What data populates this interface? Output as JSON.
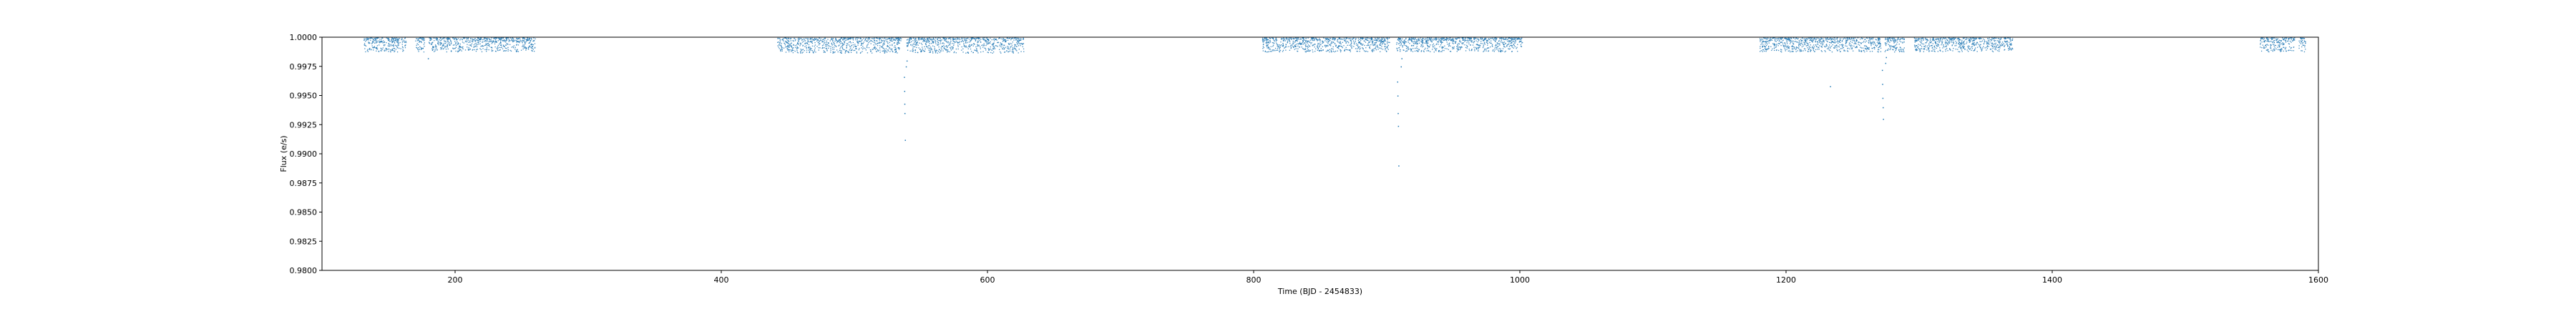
{
  "chart_data": {
    "type": "scatter",
    "title": "",
    "xlabel": "Time (BJD - 2454833)",
    "ylabel": "Flux (e/s)",
    "xlim": [
      100,
      1600
    ],
    "ylim": [
      0.98,
      1.0
    ],
    "xticks": [
      {
        "value": 200,
        "label": "200"
      },
      {
        "value": 400,
        "label": "400"
      },
      {
        "value": 600,
        "label": "600"
      },
      {
        "value": 800,
        "label": "800"
      },
      {
        "value": 1000,
        "label": "1000"
      },
      {
        "value": 1200,
        "label": "1200"
      },
      {
        "value": 1400,
        "label": "1400"
      },
      {
        "value": 1600,
        "label": "1600"
      }
    ],
    "yticks": [
      {
        "value": 0.98,
        "label": "0.9800"
      },
      {
        "value": 0.9825,
        "label": "0.9825"
      },
      {
        "value": 0.985,
        "label": "0.9850"
      },
      {
        "value": 0.9875,
        "label": "0.9875"
      },
      {
        "value": 0.99,
        "label": "0.9900"
      },
      {
        "value": 0.9925,
        "label": "0.9925"
      },
      {
        "value": 0.995,
        "label": "0.9950"
      },
      {
        "value": 0.9975,
        "label": "0.9975"
      },
      {
        "value": 1.0,
        "label": "1.0000"
      }
    ],
    "grid": false,
    "marker_color": "#1f77b4",
    "segments": [
      {
        "x": [
          131,
          163
        ],
        "flux_min": 0.9988
      },
      {
        "x": [
          170,
          177
        ],
        "flux_min": 0.9988
      },
      {
        "x": [
          180,
          260
        ],
        "flux_min": 0.9988
      },
      {
        "x": [
          442,
          535
        ],
        "flux_min": 0.9987
      },
      {
        "x": [
          539,
          627
        ],
        "flux_min": 0.9987
      },
      {
        "x": [
          806,
          902
        ],
        "flux_min": 0.9988
      },
      {
        "x": [
          907,
          1002
        ],
        "flux_min": 0.9988
      },
      {
        "x": [
          1180,
          1271
        ],
        "flux_min": 0.9988
      },
      {
        "x": [
          1274,
          1289
        ],
        "flux_min": 0.9988
      },
      {
        "x": [
          1296,
          1370
        ],
        "flux_min": 0.9988
      },
      {
        "x": [
          1556,
          1582
        ],
        "flux_min": 0.9988
      },
      {
        "x": [
          1585,
          1590
        ],
        "flux_min": 0.9988
      }
    ],
    "dip_points": [
      {
        "x": 179.5,
        "y": 0.9982
      },
      {
        "x": 537.2,
        "y": 0.9966
      },
      {
        "x": 537.4,
        "y": 0.9954
      },
      {
        "x": 537.5,
        "y": 0.9943
      },
      {
        "x": 537.6,
        "y": 0.9935
      },
      {
        "x": 537.9,
        "y": 0.9912
      },
      {
        "x": 538.6,
        "y": 0.9975
      },
      {
        "x": 539.2,
        "y": 0.998
      },
      {
        "x": 907.8,
        "y": 0.9962
      },
      {
        "x": 908.0,
        "y": 0.995
      },
      {
        "x": 908.2,
        "y": 0.9935
      },
      {
        "x": 908.4,
        "y": 0.9924
      },
      {
        "x": 908.7,
        "y": 0.989
      },
      {
        "x": 910.5,
        "y": 0.9975
      },
      {
        "x": 911.0,
        "y": 0.9982
      },
      {
        "x": 1272.0,
        "y": 0.9972
      },
      {
        "x": 1272.2,
        "y": 0.996
      },
      {
        "x": 1272.4,
        "y": 0.9948
      },
      {
        "x": 1272.6,
        "y": 0.994
      },
      {
        "x": 1272.8,
        "y": 0.993
      },
      {
        "x": 1274.5,
        "y": 0.9978
      },
      {
        "x": 1275.0,
        "y": 0.9983
      },
      {
        "x": 1233.0,
        "y": 0.9958
      }
    ]
  }
}
